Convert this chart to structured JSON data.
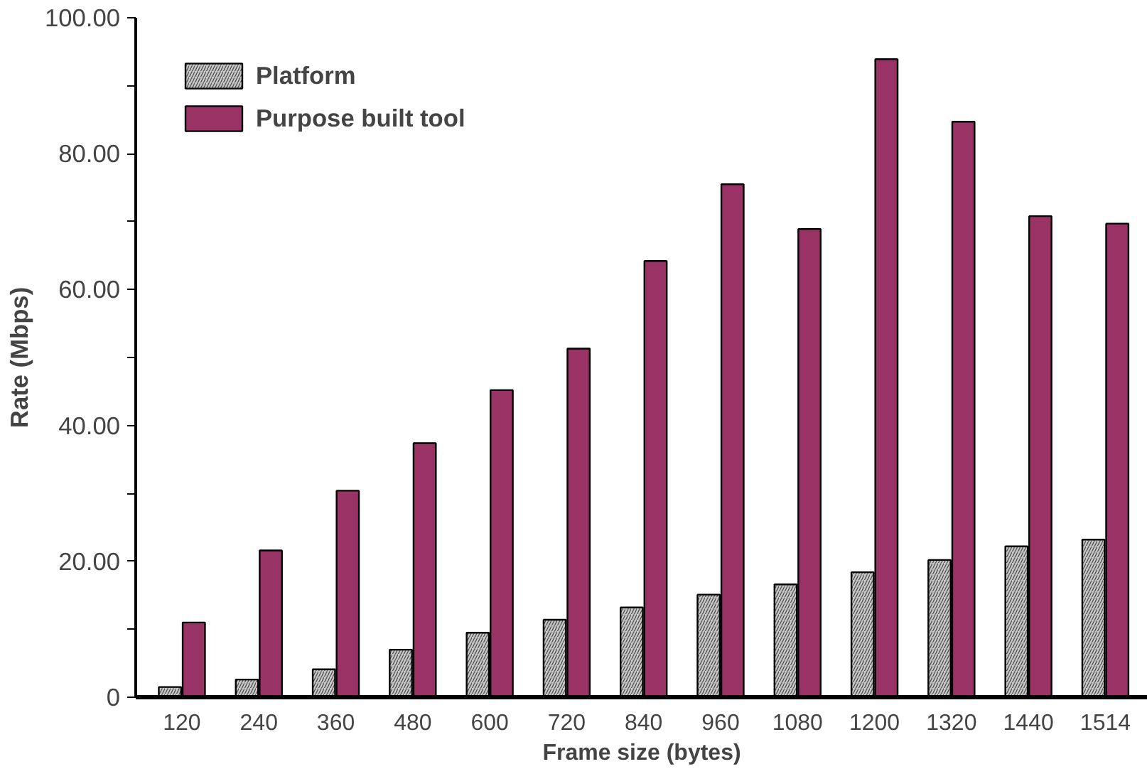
{
  "chart_data": {
    "type": "bar",
    "xlabel": "Frame size (bytes)",
    "ylabel": "Rate (Mbps)",
    "categories": [
      "120",
      "240",
      "360",
      "480",
      "600",
      "720",
      "840",
      "960",
      "1080",
      "1200",
      "1320",
      "1440",
      "1514"
    ],
    "series": [
      {
        "name": "Platform",
        "color": "#c8c8c8",
        "values": [
          1.5,
          2.6,
          4.1,
          7.0,
          9.5,
          11.4,
          13.2,
          15.1,
          16.6,
          18.4,
          20.2,
          22.2,
          23.2
        ]
      },
      {
        "name": "Purpose built tool",
        "color": "#993366",
        "values": [
          11.0,
          21.6,
          30.4,
          37.4,
          45.2,
          51.3,
          64.2,
          75.5,
          68.9,
          93.9,
          84.7,
          70.8,
          69.7
        ]
      }
    ],
    "ylim": [
      0,
      100
    ],
    "yticks": [
      0,
      {
        "value": 10,
        "label": null
      },
      {
        "value": 20,
        "label": "20.00"
      },
      {
        "value": 30,
        "label": null
      },
      {
        "value": 40,
        "label": "40.00"
      },
      {
        "value": 50,
        "label": null
      },
      {
        "value": 60,
        "label": "60.00"
      },
      {
        "value": 70,
        "label": null
      },
      {
        "value": 80,
        "label": "80.00"
      },
      {
        "value": 90,
        "label": null
      },
      {
        "value": 100,
        "label": "100.00"
      }
    ],
    "grid": false,
    "legend": "top"
  }
}
